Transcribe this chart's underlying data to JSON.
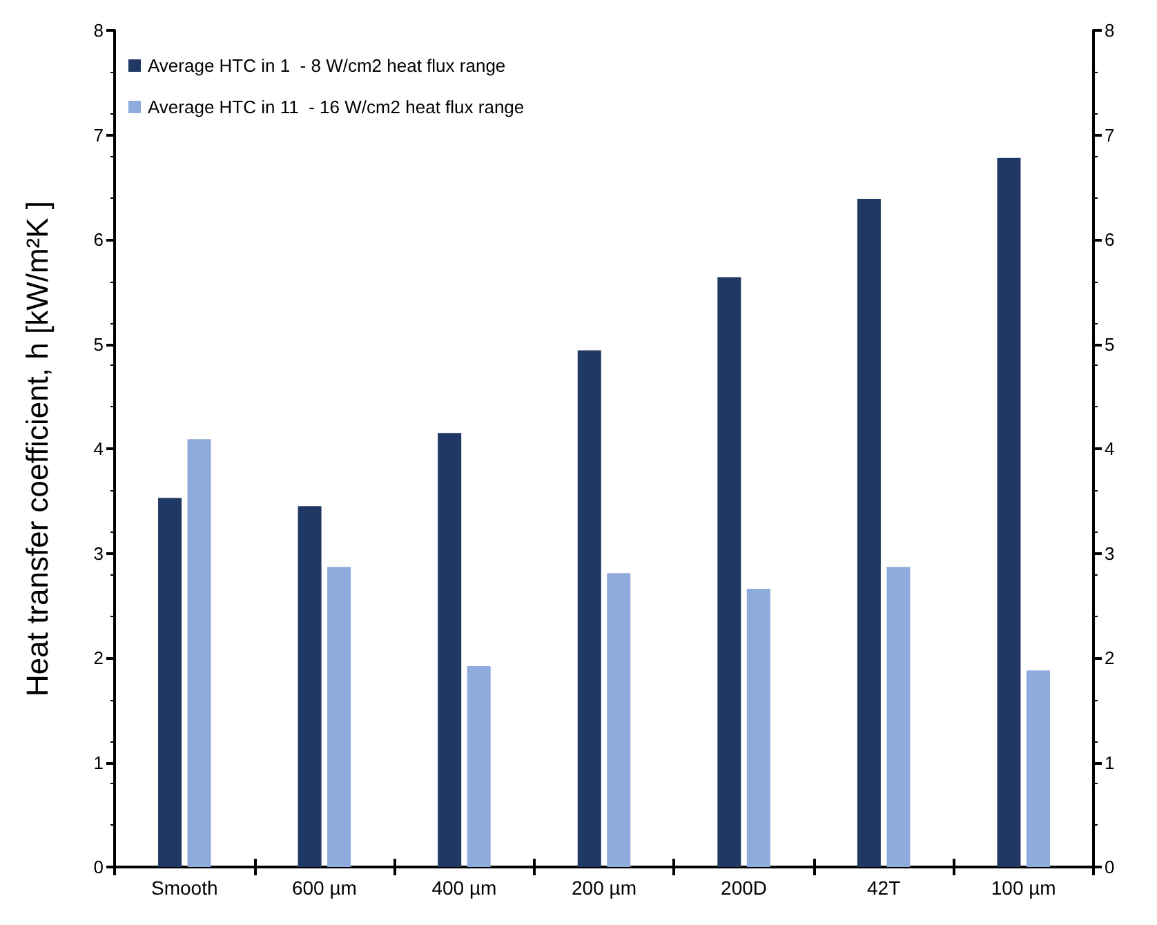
{
  "chart_data": {
    "type": "bar",
    "ylabel": "Heat transfer coefficient, h [kW/m²K ]",
    "categories": [
      "Smooth",
      "600 µm",
      "400 µm",
      "200 µm",
      "200D",
      "42T",
      "100 µm"
    ],
    "series": [
      {
        "name": "Average HTC in 1  - 8 W/cm2 heat flux range",
        "color": "#203864",
        "values": [
          3.53,
          3.45,
          4.15,
          4.94,
          5.64,
          6.39,
          6.78
        ]
      },
      {
        "name": "Average HTC in 11  - 16 W/cm2 heat flux range",
        "color": "#8faadc",
        "values": [
          4.09,
          2.87,
          1.92,
          2.81,
          2.66,
          2.87,
          1.88
        ]
      }
    ],
    "ylim": [
      0,
      8
    ],
    "yticks": [
      0,
      1,
      2,
      3,
      4,
      5,
      6,
      7,
      8
    ],
    "y2lim": [
      0,
      8
    ],
    "y2ticks": [
      0,
      1,
      2,
      3,
      4,
      5,
      6,
      7,
      8
    ],
    "grid": false,
    "legend": "top left"
  }
}
